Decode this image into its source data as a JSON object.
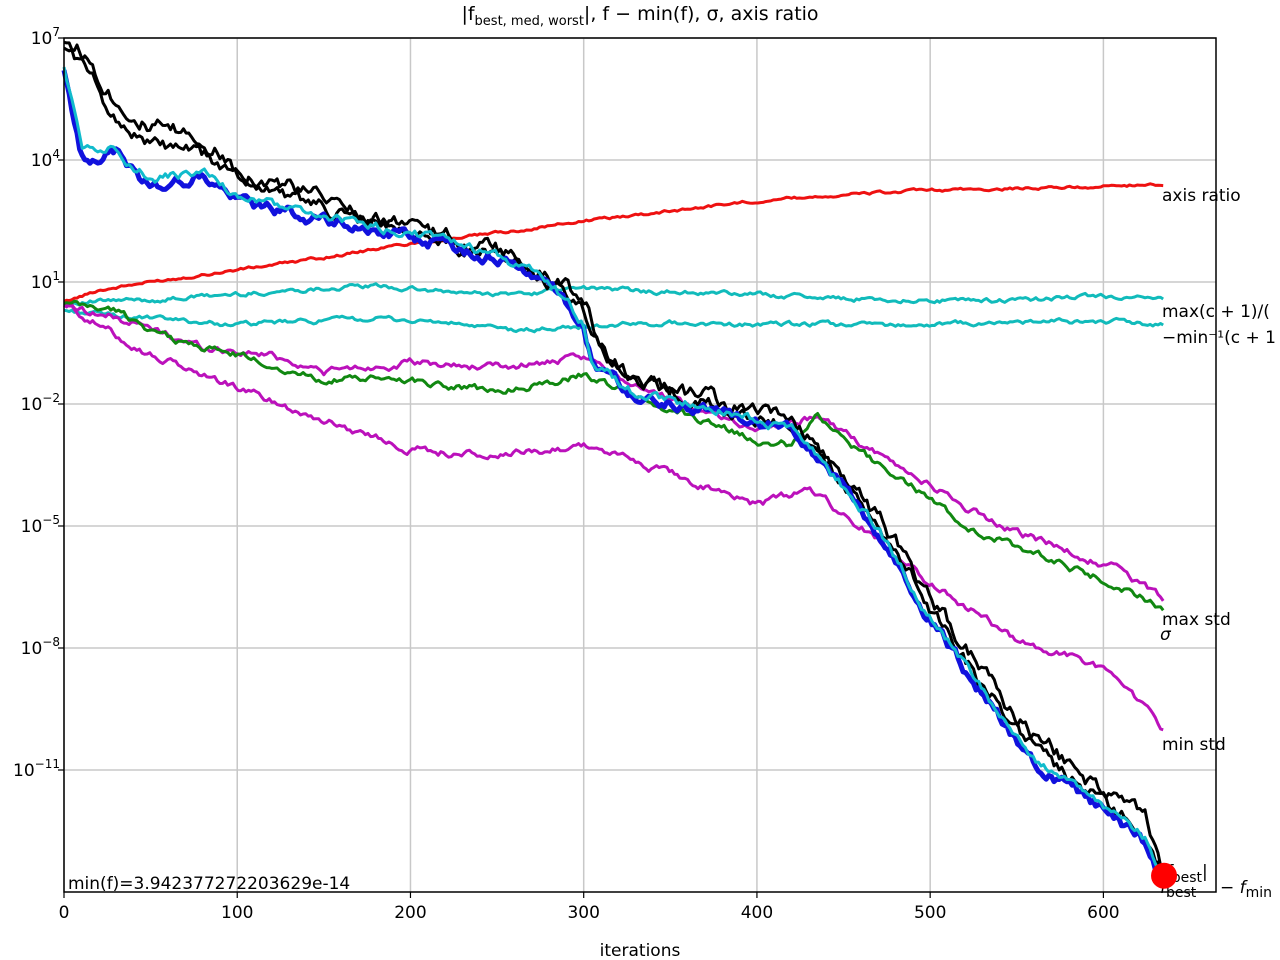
{
  "chart_data": {
    "type": "line",
    "title": "|f_best,med,worst|, f − min(f), σ, axis ratio",
    "title_parts": {
      "a": "|f",
      "a_sub": "best, med, worst",
      "b": "|, f − min(f), σ, axis ratio"
    },
    "xlabel": "iterations",
    "ylabel": "",
    "yscale": "log",
    "xlim": [
      0,
      665
    ],
    "ylim_exp": [
      -14.0,
      7.0
    ],
    "grid": true,
    "x_ticks": [
      0,
      100,
      200,
      300,
      400,
      500,
      600
    ],
    "y_ticks_exp": [
      7,
      4,
      1,
      -2,
      -5,
      -8,
      -11
    ],
    "y_tick_labels": [
      {
        "base": "10",
        "exp": "7"
      },
      {
        "base": "10",
        "exp": "4"
      },
      {
        "base": "10",
        "exp": "1"
      },
      {
        "base": "10",
        "exp": "−2"
      },
      {
        "base": "10",
        "exp": "−5"
      },
      {
        "base": "10",
        "exp": "−8"
      },
      {
        "base": "10",
        "exp": "−11"
      }
    ],
    "annotation_min": "min(f)=3.942377272203629e-14",
    "series": [
      {
        "id": "axis_ratio",
        "color": "#ee1111",
        "label": "axis ratio",
        "points": [
          [
            0,
            0.5
          ],
          [
            20,
            0.8
          ],
          [
            50,
            1.0
          ],
          [
            100,
            1.3
          ],
          [
            150,
            1.6
          ],
          [
            200,
            1.95
          ],
          [
            250,
            2.2
          ],
          [
            300,
            2.5
          ],
          [
            350,
            2.75
          ],
          [
            400,
            3.0
          ],
          [
            450,
            3.15
          ],
          [
            500,
            3.25
          ],
          [
            550,
            3.3
          ],
          [
            600,
            3.35
          ],
          [
            635,
            3.4
          ]
        ]
      },
      {
        "id": "cov_max",
        "color": "#11bbbb",
        "label": "max(c + 1)/(",
        "points": [
          [
            0,
            0.5
          ],
          [
            50,
            0.55
          ],
          [
            100,
            0.7
          ],
          [
            150,
            0.85
          ],
          [
            180,
            0.9
          ],
          [
            220,
            0.75
          ],
          [
            260,
            0.7
          ],
          [
            300,
            0.85
          ],
          [
            350,
            0.75
          ],
          [
            400,
            0.7
          ],
          [
            450,
            0.6
          ],
          [
            500,
            0.55
          ],
          [
            550,
            0.55
          ],
          [
            600,
            0.65
          ],
          [
            635,
            0.55
          ]
        ]
      },
      {
        "id": "cov_min",
        "color": "#11bbbb",
        "label": "−min⁻¹(c + 1",
        "points": [
          [
            0,
            0.3
          ],
          [
            50,
            0.1
          ],
          [
            100,
            -0.05
          ],
          [
            150,
            0.05
          ],
          [
            180,
            0.1
          ],
          [
            220,
            0.0
          ],
          [
            260,
            -0.2
          ],
          [
            300,
            -0.1
          ],
          [
            350,
            0.0
          ],
          [
            400,
            -0.05
          ],
          [
            450,
            -0.05
          ],
          [
            500,
            -0.05
          ],
          [
            550,
            0.0
          ],
          [
            600,
            0.05
          ],
          [
            635,
            -0.05
          ]
        ]
      },
      {
        "id": "sigma",
        "color": "#118811",
        "label": "σ",
        "points": [
          [
            0,
            0.45
          ],
          [
            30,
            0.3
          ],
          [
            60,
            -0.4
          ],
          [
            100,
            -0.8
          ],
          [
            150,
            -1.4
          ],
          [
            200,
            -1.4
          ],
          [
            250,
            -1.7
          ],
          [
            300,
            -1.3
          ],
          [
            350,
            -2.1
          ],
          [
            400,
            -2.9
          ],
          [
            420,
            -3.0
          ],
          [
            435,
            -2.2
          ],
          [
            460,
            -3.2
          ],
          [
            490,
            -4.0
          ],
          [
            520,
            -5.0
          ],
          [
            560,
            -5.7
          ],
          [
            600,
            -6.3
          ],
          [
            635,
            -7.0
          ]
        ]
      },
      {
        "id": "max_std",
        "color": "#bb11bb",
        "label": "max std",
        "points": [
          [
            0,
            0.45
          ],
          [
            40,
            0.0
          ],
          [
            80,
            -0.6
          ],
          [
            120,
            -0.8
          ],
          [
            150,
            -1.2
          ],
          [
            200,
            -1.0
          ],
          [
            250,
            -1.1
          ],
          [
            300,
            -0.9
          ],
          [
            350,
            -1.9
          ],
          [
            400,
            -2.6
          ],
          [
            435,
            -2.3
          ],
          [
            460,
            -3.0
          ],
          [
            500,
            -4.0
          ],
          [
            540,
            -5.0
          ],
          [
            580,
            -5.6
          ],
          [
            610,
            -6.1
          ],
          [
            635,
            -6.8
          ]
        ]
      },
      {
        "id": "min_std",
        "color": "#bb11bb",
        "label": "min std",
        "points": [
          [
            0,
            0.45
          ],
          [
            50,
            -0.8
          ],
          [
            100,
            -1.6
          ],
          [
            150,
            -2.4
          ],
          [
            200,
            -3.1
          ],
          [
            250,
            -3.3
          ],
          [
            300,
            -3.0
          ],
          [
            350,
            -3.7
          ],
          [
            400,
            -4.5
          ],
          [
            430,
            -4.1
          ],
          [
            460,
            -5.0
          ],
          [
            500,
            -6.4
          ],
          [
            550,
            -7.8
          ],
          [
            600,
            -8.5
          ],
          [
            635,
            -10.0
          ]
        ]
      },
      {
        "id": "f_worst",
        "color": "#000000",
        "label": "",
        "points": [
          [
            0,
            7.0
          ],
          [
            10,
            6.7
          ],
          [
            30,
            5.5
          ],
          [
            50,
            4.8
          ],
          [
            80,
            4.5
          ],
          [
            100,
            3.8
          ],
          [
            150,
            3.0
          ],
          [
            200,
            2.3
          ],
          [
            250,
            1.8
          ],
          [
            280,
            1.1
          ],
          [
            300,
            0.6
          ],
          [
            310,
            -0.5
          ],
          [
            330,
            -1.4
          ],
          [
            380,
            -2.0
          ],
          [
            420,
            -2.5
          ],
          [
            440,
            -3.3
          ],
          [
            470,
            -4.8
          ],
          [
            500,
            -6.7
          ],
          [
            530,
            -8.6
          ],
          [
            560,
            -10.2
          ],
          [
            600,
            -11.5
          ],
          [
            625,
            -12.3
          ],
          [
            635,
            -13.6
          ]
        ]
      },
      {
        "id": "f_med",
        "color": "#000000",
        "label": "",
        "points": [
          [
            0,
            6.8
          ],
          [
            10,
            6.4
          ],
          [
            30,
            5.0
          ],
          [
            50,
            4.4
          ],
          [
            80,
            4.1
          ],
          [
            100,
            3.6
          ],
          [
            150,
            2.8
          ],
          [
            200,
            2.2
          ],
          [
            250,
            1.7
          ],
          [
            280,
            1.0
          ],
          [
            300,
            0.3
          ],
          [
            310,
            -0.7
          ],
          [
            330,
            -1.5
          ],
          [
            380,
            -2.1
          ],
          [
            420,
            -2.6
          ],
          [
            440,
            -3.4
          ],
          [
            470,
            -5.0
          ],
          [
            500,
            -7.0
          ],
          [
            530,
            -8.9
          ],
          [
            560,
            -10.5
          ],
          [
            600,
            -11.8
          ],
          [
            625,
            -12.6
          ],
          [
            635,
            -13.7
          ]
        ]
      },
      {
        "id": "f_best",
        "color": "#1111dd",
        "label": "",
        "points": [
          [
            0,
            6.2
          ],
          [
            5,
            5.2
          ],
          [
            10,
            4.0
          ],
          [
            30,
            4.2
          ],
          [
            50,
            3.3
          ],
          [
            80,
            3.6
          ],
          [
            100,
            3.0
          ],
          [
            150,
            2.5
          ],
          [
            200,
            2.1
          ],
          [
            250,
            1.6
          ],
          [
            280,
            1.0
          ],
          [
            300,
            -0.1
          ],
          [
            305,
            -1.0
          ],
          [
            330,
            -1.8
          ],
          [
            380,
            -2.2
          ],
          [
            420,
            -2.7
          ],
          [
            440,
            -3.6
          ],
          [
            470,
            -5.2
          ],
          [
            500,
            -7.3
          ],
          [
            530,
            -9.1
          ],
          [
            560,
            -10.8
          ],
          [
            600,
            -12.0
          ],
          [
            625,
            -12.8
          ],
          [
            635,
            -13.9
          ]
        ]
      },
      {
        "id": "f_minus_min",
        "color": "#11bbcc",
        "label": "",
        "points": [
          [
            0,
            6.2
          ],
          [
            5,
            5.5
          ],
          [
            10,
            4.3
          ],
          [
            30,
            4.3
          ],
          [
            50,
            3.5
          ],
          [
            80,
            3.7
          ],
          [
            100,
            3.1
          ],
          [
            150,
            2.6
          ],
          [
            200,
            2.2
          ],
          [
            250,
            1.65
          ],
          [
            280,
            1.05
          ],
          [
            300,
            0.0
          ],
          [
            305,
            -0.9
          ],
          [
            330,
            -1.75
          ],
          [
            380,
            -2.15
          ],
          [
            420,
            -2.65
          ],
          [
            440,
            -3.5
          ],
          [
            470,
            -5.1
          ],
          [
            500,
            -7.2
          ],
          [
            530,
            -9.0
          ],
          [
            560,
            -10.7
          ],
          [
            600,
            -11.9
          ],
          [
            625,
            -12.7
          ],
          [
            635,
            -13.8
          ]
        ]
      }
    ],
    "end_labels": {
      "axis_ratio": "axis ratio",
      "cov_max": "max(c + 1)/(",
      "cov_min": "−min⁻¹(c + 1",
      "sigma": "σ",
      "max_std": "max std",
      "min_std": "min std",
      "f_best": "|f",
      "f_best_sub": "best",
      "f_best2": "f",
      "f_best2_sub": "best",
      "f_min_side": "− f",
      "f_min_side_sub": "min"
    },
    "marker": {
      "x": 635,
      "y_exp": -13.6,
      "color": "#ff0000"
    }
  }
}
